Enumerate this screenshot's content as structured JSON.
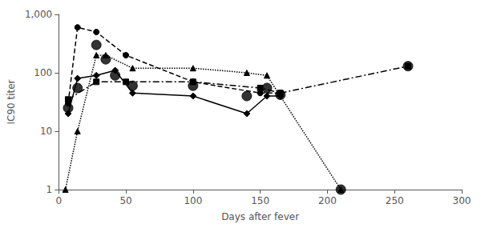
{
  "chart_data": {
    "type": "line",
    "xlabel": "Days after fever",
    "ylabel": "IC90 titer",
    "log": "y",
    "grid": false,
    "xlim": [
      0,
      300
    ],
    "ylim": [
      1,
      1000
    ],
    "xticks": [
      0,
      50,
      100,
      150,
      200,
      250,
      300
    ],
    "yticks": [
      1,
      10,
      100,
      {
        "value": 1000,
        "label": "1,000"
      }
    ],
    "series": [
      {
        "type": "line",
        "color": "black",
        "marker": "circle",
        "line_style": "dashed",
        "x": [
          7,
          14,
          28,
          50,
          100,
          150,
          165
        ],
        "values": [
          30,
          600,
          500,
          200,
          70,
          45,
          45
        ]
      },
      {
        "type": "line",
        "color": "black",
        "marker": "square",
        "line_style": "dashdot",
        "x": [
          7,
          28,
          50,
          100,
          150,
          165,
          260
        ],
        "values": [
          35,
          70,
          70,
          70,
          55,
          45,
          130
        ]
      },
      {
        "type": "line",
        "color": "black",
        "marker": "diamond",
        "line_style": "solid",
        "x": [
          7,
          14,
          28,
          42,
          55,
          100,
          140,
          155,
          165
        ],
        "values": [
          20,
          80,
          90,
          110,
          45,
          40,
          20,
          40,
          40
        ]
      },
      {
        "type": "line",
        "color": "black",
        "marker": "triangle",
        "line_style": "dotted",
        "x": [
          5,
          14,
          28,
          35,
          55,
          100,
          140,
          155,
          210
        ],
        "values": [
          1,
          10,
          200,
          200,
          120,
          120,
          100,
          90,
          1
        ]
      },
      {
        "type": "scatter",
        "color": "black",
        "marker": "circle",
        "x": [
          7,
          14,
          28,
          35,
          42,
          55,
          100,
          140,
          155,
          165,
          210,
          260
        ],
        "values": [
          25,
          55,
          300,
          170,
          90,
          60,
          60,
          40,
          55,
          42,
          1,
          130
        ]
      }
    ]
  }
}
